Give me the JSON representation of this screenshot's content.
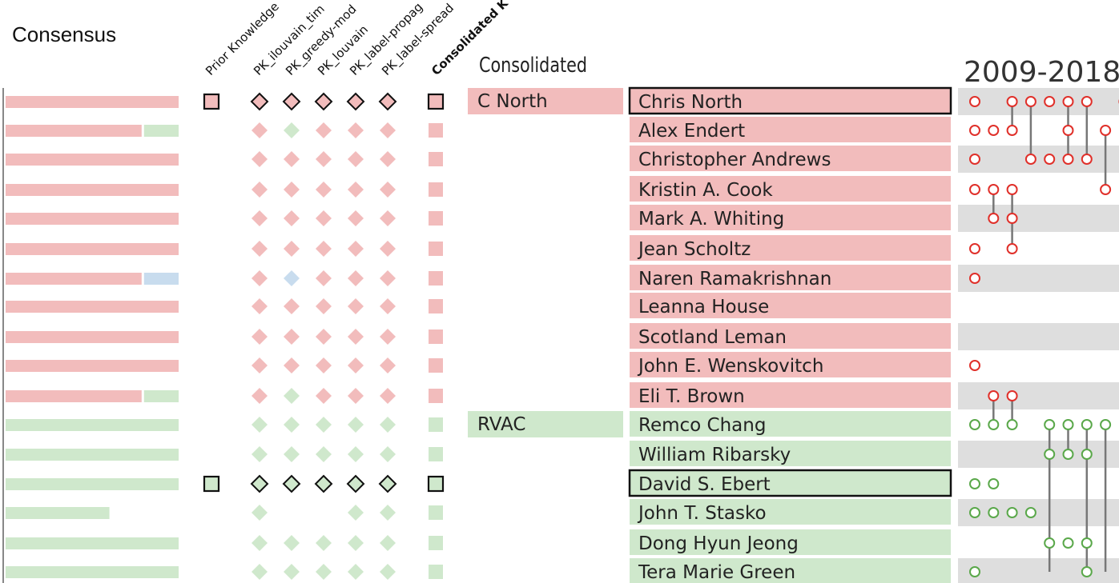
{
  "header": {
    "consensus_label": "Consensus",
    "consolidated_label": "Consolidated",
    "year_range": "2009-2018"
  },
  "columns": [
    "Prior Knowledge",
    "PK_ilouvain_tim",
    "PK_greedy-mod",
    "PK_louvain",
    "PK_label-propag",
    "PK_label-spread",
    "Consolidated K"
  ],
  "colors": {
    "cnorth": "#f2bcbc",
    "rvac": "#cfe8cc",
    "blue": "#c8dcee",
    "red_stroke": "#e0302a",
    "green_stroke": "#5aa84a",
    "row_gray": "#dedede"
  },
  "chart_data": {
    "type": "table",
    "clusters": [
      {
        "label": "C North",
        "color": "cnorth",
        "first_row": 0
      },
      {
        "label": "RVAC",
        "color": "rvac",
        "first_row": 11
      }
    ],
    "rows": [
      {
        "name": "Chris North",
        "cluster": "cnorth",
        "highlight": true,
        "consensus": [
          {
            "color": "cnorth",
            "value": 1.0
          }
        ],
        "marks": [
          "cnorth",
          "cnorth",
          "cnorth",
          "cnorth",
          "cnorth",
          "cnorth",
          "cnorth"
        ],
        "years": [
          2009,
          2011,
          2012,
          2013,
          2014,
          2015,
          2017
        ]
      },
      {
        "name": "Alex Endert",
        "cluster": "cnorth",
        "highlight": false,
        "consensus": [
          {
            "color": "cnorth",
            "value": 0.8
          },
          {
            "color": "rvac",
            "value": 0.2
          }
        ],
        "marks": [
          null,
          "cnorth",
          "rvac",
          "cnorth",
          "cnorth",
          "cnorth",
          "cnorth"
        ],
        "years": [
          2009,
          2010,
          2011,
          2014,
          2016
        ]
      },
      {
        "name": "Christopher Andrews",
        "cluster": "cnorth",
        "highlight": false,
        "consensus": [
          {
            "color": "cnorth",
            "value": 1.0
          }
        ],
        "marks": [
          null,
          "cnorth",
          "cnorth",
          "cnorth",
          "cnorth",
          "cnorth",
          "cnorth"
        ],
        "years": [
          2009,
          2012,
          2013,
          2014,
          2015
        ]
      },
      {
        "name": "Kristin A. Cook",
        "cluster": "cnorth",
        "highlight": false,
        "consensus": [
          {
            "color": "cnorth",
            "value": 1.0
          }
        ],
        "marks": [
          null,
          "cnorth",
          "cnorth",
          "cnorth",
          "cnorth",
          "cnorth",
          "cnorth"
        ],
        "years": [
          2009,
          2010,
          2011,
          2016
        ]
      },
      {
        "name": "Mark A. Whiting",
        "cluster": "cnorth",
        "highlight": false,
        "consensus": [
          {
            "color": "cnorth",
            "value": 1.0
          }
        ],
        "marks": [
          null,
          "cnorth",
          "cnorth",
          "cnorth",
          "cnorth",
          "cnorth",
          "cnorth"
        ],
        "years": [
          2010,
          2011
        ]
      },
      {
        "name": "Jean Scholtz",
        "cluster": "cnorth",
        "highlight": false,
        "consensus": [
          {
            "color": "cnorth",
            "value": 1.0
          }
        ],
        "marks": [
          null,
          "cnorth",
          "cnorth",
          "cnorth",
          "cnorth",
          "cnorth",
          "cnorth"
        ],
        "years": [
          2009,
          2011
        ]
      },
      {
        "name": "Naren Ramakrishnan",
        "cluster": "cnorth",
        "highlight": false,
        "consensus": [
          {
            "color": "cnorth",
            "value": 0.8
          },
          {
            "color": "blue",
            "value": 0.2
          }
        ],
        "marks": [
          null,
          "cnorth",
          "blue",
          "cnorth",
          "cnorth",
          "cnorth",
          "cnorth"
        ],
        "years": [
          2009
        ]
      },
      {
        "name": "Leanna House",
        "cluster": "cnorth",
        "highlight": false,
        "consensus": [
          {
            "color": "cnorth",
            "value": 1.0
          }
        ],
        "marks": [
          null,
          "cnorth",
          "cnorth",
          "cnorth",
          "cnorth",
          "cnorth",
          "cnorth"
        ],
        "years": []
      },
      {
        "name": "Scotland Leman",
        "cluster": "cnorth",
        "highlight": false,
        "consensus": [
          {
            "color": "cnorth",
            "value": 1.0
          }
        ],
        "marks": [
          null,
          "cnorth",
          "cnorth",
          "cnorth",
          "cnorth",
          "cnorth",
          "cnorth"
        ],
        "years": []
      },
      {
        "name": "John E. Wenskovitch",
        "cluster": "cnorth",
        "highlight": false,
        "consensus": [
          {
            "color": "cnorth",
            "value": 1.0
          }
        ],
        "marks": [
          null,
          "cnorth",
          "cnorth",
          "cnorth",
          "cnorth",
          "cnorth",
          "cnorth"
        ],
        "years": [
          2009
        ]
      },
      {
        "name": "Eli T. Brown",
        "cluster": "cnorth",
        "highlight": false,
        "consensus": [
          {
            "color": "cnorth",
            "value": 0.8
          },
          {
            "color": "rvac",
            "value": 0.2
          }
        ],
        "marks": [
          null,
          "cnorth",
          "rvac",
          "cnorth",
          "cnorth",
          "cnorth",
          "cnorth"
        ],
        "years": [
          2010,
          2011
        ]
      },
      {
        "name": "Remco Chang",
        "cluster": "rvac",
        "highlight": false,
        "consensus": [
          {
            "color": "rvac",
            "value": 1.0
          }
        ],
        "marks": [
          null,
          "rvac",
          "rvac",
          "rvac",
          "rvac",
          "rvac",
          "rvac"
        ],
        "years": [
          2009,
          2010,
          2011,
          2013,
          2014,
          2015,
          2016
        ]
      },
      {
        "name": "William Ribarsky",
        "cluster": "rvac",
        "highlight": false,
        "consensus": [
          {
            "color": "rvac",
            "value": 1.0
          }
        ],
        "marks": [
          null,
          "rvac",
          "rvac",
          "rvac",
          "rvac",
          "rvac",
          "rvac"
        ],
        "years": [
          2013,
          2014,
          2015
        ]
      },
      {
        "name": "David S. Ebert",
        "cluster": "rvac",
        "highlight": true,
        "consensus": [
          {
            "color": "rvac",
            "value": 1.0
          }
        ],
        "marks": [
          "rvac",
          "rvac",
          "rvac",
          "rvac",
          "rvac",
          "rvac",
          "rvac"
        ],
        "years": [
          2009,
          2010
        ]
      },
      {
        "name": "John T. Stasko",
        "cluster": "rvac",
        "highlight": false,
        "consensus": [
          {
            "color": "rvac",
            "value": 0.6
          }
        ],
        "marks": [
          null,
          "rvac",
          null,
          null,
          "rvac",
          "rvac",
          "rvac"
        ],
        "years": [
          2009,
          2010,
          2011,
          2012
        ]
      },
      {
        "name": "Dong Hyun Jeong",
        "cluster": "rvac",
        "highlight": false,
        "consensus": [
          {
            "color": "rvac",
            "value": 1.0
          }
        ],
        "marks": [
          null,
          "rvac",
          "rvac",
          "rvac",
          "rvac",
          "rvac",
          "rvac"
        ],
        "years": [
          2013,
          2014,
          2015
        ]
      },
      {
        "name": "Tera Marie Green",
        "cluster": "rvac",
        "highlight": false,
        "consensus": [
          {
            "color": "rvac",
            "value": 1.0
          }
        ],
        "marks": [
          null,
          "rvac",
          "rvac",
          "rvac",
          "rvac",
          "rvac",
          "rvac"
        ],
        "years": [
          2009,
          2015
        ]
      }
    ],
    "links": [
      {
        "year": 2011,
        "from_row": 0,
        "to_row": 1,
        "color": "red_stroke"
      },
      {
        "year": 2012,
        "from_row": 0,
        "to_row": 2,
        "color": "red_stroke"
      },
      {
        "year": 2014,
        "from_row": 0,
        "to_row": 2,
        "color": "red_stroke"
      },
      {
        "year": 2015,
        "from_row": 0,
        "to_row": 2,
        "color": "red_stroke"
      },
      {
        "year": 2016,
        "from_row": 1,
        "to_row": 3,
        "color": "red_stroke"
      },
      {
        "year": 2010,
        "from_row": 3,
        "to_row": 4,
        "color": "red_stroke"
      },
      {
        "year": 2011,
        "from_row": 3,
        "to_row": 5,
        "color": "red_stroke"
      },
      {
        "year": 2010,
        "from_row": 10,
        "to_row": 11,
        "color": "red_stroke"
      },
      {
        "year": 2011,
        "from_row": 10,
        "to_row": 11,
        "color": "red_stroke"
      },
      {
        "year": 2013,
        "from_row": 11,
        "to_row": 16,
        "color": "green_stroke"
      },
      {
        "year": 2014,
        "from_row": 11,
        "to_row": 12,
        "color": "green_stroke"
      },
      {
        "year": 2015,
        "from_row": 11,
        "to_row": 16,
        "color": "green_stroke"
      },
      {
        "year": 2016,
        "from_row": 11,
        "to_row": 16,
        "color": "green_stroke"
      }
    ]
  }
}
